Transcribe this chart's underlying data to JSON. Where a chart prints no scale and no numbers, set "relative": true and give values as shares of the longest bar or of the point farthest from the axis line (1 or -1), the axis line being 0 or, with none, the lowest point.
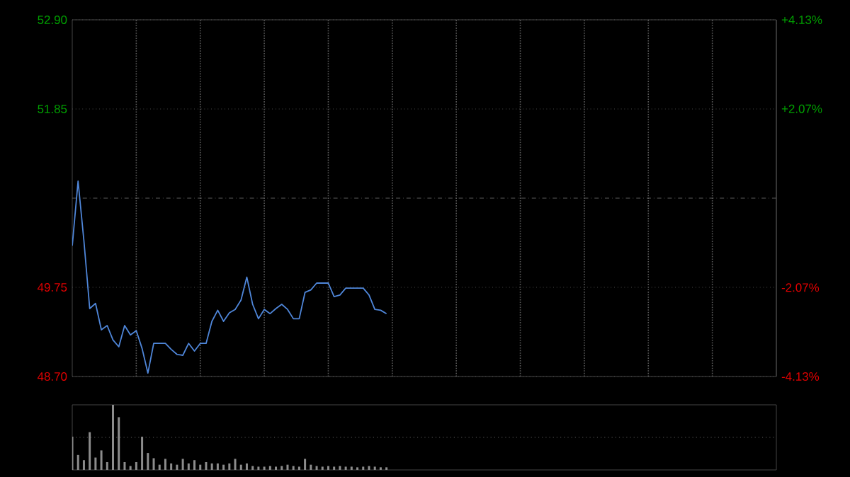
{
  "chart_data": [
    {
      "type": "line",
      "categories": [
        null,
        null,
        null,
        null,
        null,
        null,
        null,
        null,
        null,
        null,
        null,
        null,
        null,
        null,
        null,
        null,
        null,
        null,
        null,
        null,
        null,
        null,
        null,
        null,
        null,
        null,
        null,
        null,
        null,
        null,
        null,
        null,
        null,
        null,
        null,
        null,
        null,
        null,
        null,
        null,
        null,
        null,
        null,
        null,
        null,
        null,
        null,
        null,
        null,
        null,
        null,
        null,
        null,
        null,
        null,
        null,
        null,
        null,
        null,
        null,
        null,
        null,
        null,
        null,
        null,
        null,
        null,
        null,
        null,
        null,
        null,
        null,
        null,
        null,
        null,
        null,
        null,
        null,
        null,
        null,
        null,
        null,
        null,
        null,
        null,
        null,
        null,
        null,
        null,
        null,
        null,
        null,
        null,
        null,
        null,
        null,
        null,
        null,
        null,
        null,
        null,
        null,
        null,
        null,
        null,
        null,
        null,
        null,
        null,
        null,
        null,
        null,
        null,
        null,
        null,
        null,
        null,
        null,
        null,
        null,
        null,
        null
      ],
      "series": [
        {
          "color": "#4f86d9",
          "values": [
            50.24,
            51.0,
            50.3,
            49.5,
            49.56,
            49.25,
            49.3,
            49.13,
            49.05,
            49.3,
            49.19,
            49.24,
            49.03,
            48.74,
            49.09,
            49.09,
            49.09,
            49.02,
            48.96,
            48.95,
            49.09,
            49.0,
            49.09,
            49.09,
            49.35,
            49.48,
            49.35,
            49.45,
            49.49,
            49.6,
            49.87,
            49.55,
            49.38,
            49.49,
            49.44,
            49.5,
            49.55,
            49.49,
            49.38,
            49.38,
            49.69,
            49.72,
            49.8,
            49.8,
            49.8,
            49.64,
            49.66,
            49.74,
            49.74,
            49.74,
            49.74,
            49.66,
            49.49,
            49.48,
            49.44,
            null,
            null,
            null,
            null,
            null,
            null,
            null,
            null,
            null,
            null,
            null,
            null,
            null,
            null,
            null,
            null,
            null,
            null,
            null,
            null,
            null,
            null,
            null,
            null,
            null,
            null,
            null,
            null,
            null,
            null,
            null,
            null,
            null,
            null,
            null,
            null,
            null,
            null,
            null,
            null,
            null,
            null,
            null,
            null,
            null,
            null,
            null,
            null,
            null,
            null,
            null,
            null,
            null,
            null,
            null,
            null,
            null,
            null,
            null,
            null,
            null,
            null,
            null,
            null,
            null,
            null,
            null
          ]
        }
      ],
      "ylim": [
        48.7,
        52.9
      ],
      "yticks": [
        {
          "value": 48.7,
          "label": "48.70"
        },
        {
          "value": 49.75,
          "label": "49.75"
        },
        {
          "value": 51.85,
          "label": "51.85"
        },
        {
          "value": 52.9,
          "label": "52.90"
        }
      ],
      "y2lim": [
        -4.13,
        4.13
      ],
      "y2ticks": [
        {
          "value": -4.13,
          "label": "-4.13%"
        },
        {
          "value": -2.07,
          "label": "-2.07%"
        },
        {
          "value": 2.07,
          "label": "+2.07%"
        },
        {
          "value": 4.13,
          "label": "+4.13%"
        }
      ],
      "ref_lines": [
        {
          "axis": "y",
          "value": 50.8,
          "line_style": "dashed"
        }
      ],
      "grid": true,
      "line_style": "solid"
    },
    {
      "type": "bar",
      "relative": true,
      "color": "#8c8c8c",
      "categories": [
        null,
        null,
        null,
        null,
        null,
        null,
        null,
        null,
        null,
        null,
        null,
        null,
        null,
        null,
        null,
        null,
        null,
        null,
        null,
        null,
        null,
        null,
        null,
        null,
        null,
        null,
        null,
        null,
        null,
        null,
        null,
        null,
        null,
        null,
        null,
        null,
        null,
        null,
        null,
        null,
        null,
        null,
        null,
        null,
        null,
        null,
        null,
        null,
        null,
        null,
        null,
        null,
        null,
        null,
        null,
        null,
        null,
        null,
        null,
        null,
        null,
        null,
        null,
        null,
        null,
        null,
        null,
        null,
        null,
        null,
        null,
        null,
        null,
        null,
        null,
        null,
        null,
        null,
        null,
        null,
        null,
        null,
        null,
        null,
        null,
        null,
        null,
        null,
        null,
        null,
        null,
        null,
        null,
        null,
        null,
        null,
        null,
        null,
        null,
        null,
        null,
        null,
        null,
        null,
        null,
        null,
        null,
        null,
        null,
        null,
        null,
        null,
        null,
        null,
        null,
        null,
        null,
        null,
        null,
        null,
        null,
        null
      ],
      "values": [
        0.51,
        0.23,
        0.15,
        0.58,
        0.19,
        0.3,
        0.12,
        1.0,
        0.81,
        0.12,
        0.06,
        0.12,
        0.51,
        0.26,
        0.18,
        0.08,
        0.17,
        0.1,
        0.08,
        0.17,
        0.1,
        0.15,
        0.08,
        0.12,
        0.1,
        0.1,
        0.08,
        0.1,
        0.17,
        0.08,
        0.1,
        0.06,
        0.05,
        0.05,
        0.06,
        0.05,
        0.06,
        0.08,
        0.06,
        0.05,
        0.17,
        0.08,
        0.06,
        0.05,
        0.06,
        0.05,
        0.06,
        0.05,
        0.05,
        0.04,
        0.05,
        0.06,
        0.05,
        0.04,
        0.04,
        null,
        null,
        null,
        null,
        null,
        null,
        null,
        null,
        null,
        null,
        null,
        null,
        null,
        null,
        null,
        null,
        null,
        null,
        null,
        null,
        null,
        null,
        null,
        null,
        null,
        null,
        null,
        null,
        null,
        null,
        null,
        null,
        null,
        null,
        null,
        null,
        null,
        null,
        null,
        null,
        null,
        null,
        null,
        null,
        null,
        null,
        null,
        null,
        null,
        null,
        null,
        null,
        null,
        null,
        null,
        null,
        null,
        null,
        null,
        null,
        null,
        null,
        null,
        null,
        null,
        null,
        null
      ],
      "ref_lines": [
        {
          "axis": "y",
          "value": 0.5,
          "line_style": "dotted"
        }
      ]
    }
  ]
}
